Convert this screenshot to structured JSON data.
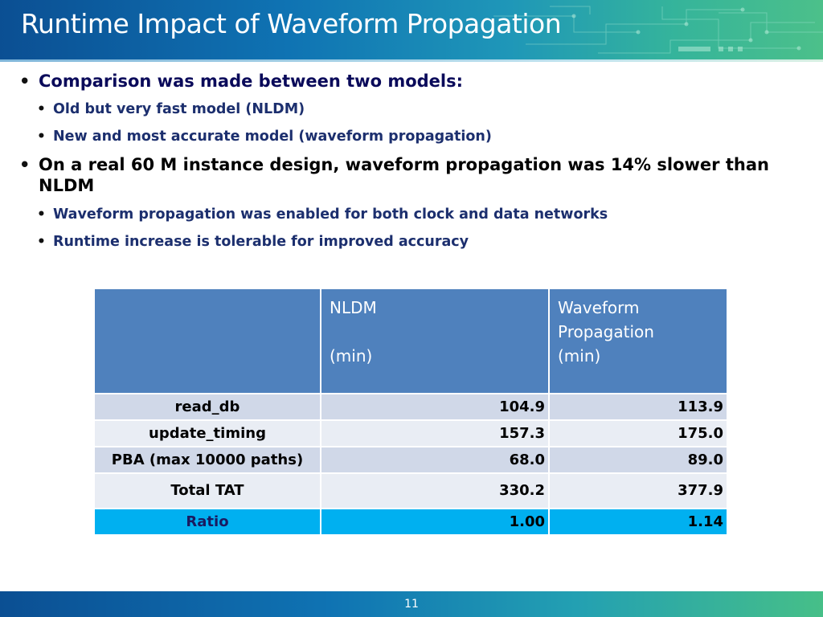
{
  "title": "Runtime Impact of Waveform Propagation",
  "bullets": [
    {
      "text": "Comparison was made between two models:",
      "sub": [
        "Old but very fast model (NLDM)",
        "New and most accurate model (waveform propagation)"
      ]
    },
    {
      "text": "On a real 60 M instance design, waveform propagation was 14% slower than NLDM",
      "sub": [
        "Waveform propagation was enabled for both clock and data networks",
        "Runtime increase is tolerable for improved accuracy"
      ]
    }
  ],
  "table": {
    "headers": [
      "",
      "NLDM\n\n(min)",
      "Waveform\nPropagation\n(min)"
    ],
    "header_nldm_line1": "NLDM",
    "header_nldm_line2": "(min)",
    "header_wave_line1": "Waveform",
    "header_wave_line2": "Propagation",
    "header_wave_line3": "(min)",
    "rows": [
      [
        "read_db",
        "104.9",
        "113.9"
      ],
      [
        "update_timing",
        "157.3",
        "175.0"
      ],
      [
        "PBA (max 10000 paths)",
        "68.0",
        "89.0"
      ],
      [
        "Total TAT",
        "330.2",
        "377.9"
      ],
      [
        "Ratio",
        "1.00",
        "1.14"
      ]
    ]
  },
  "page_number": "11",
  "colors": {
    "header_blue": "#4f81bd",
    "row_dark": "#d0d8e8",
    "row_light": "#e9edf4",
    "ratio_row": "#00b0f0",
    "banner_start": "#0b4f93",
    "banner_end": "#4cc08a"
  }
}
